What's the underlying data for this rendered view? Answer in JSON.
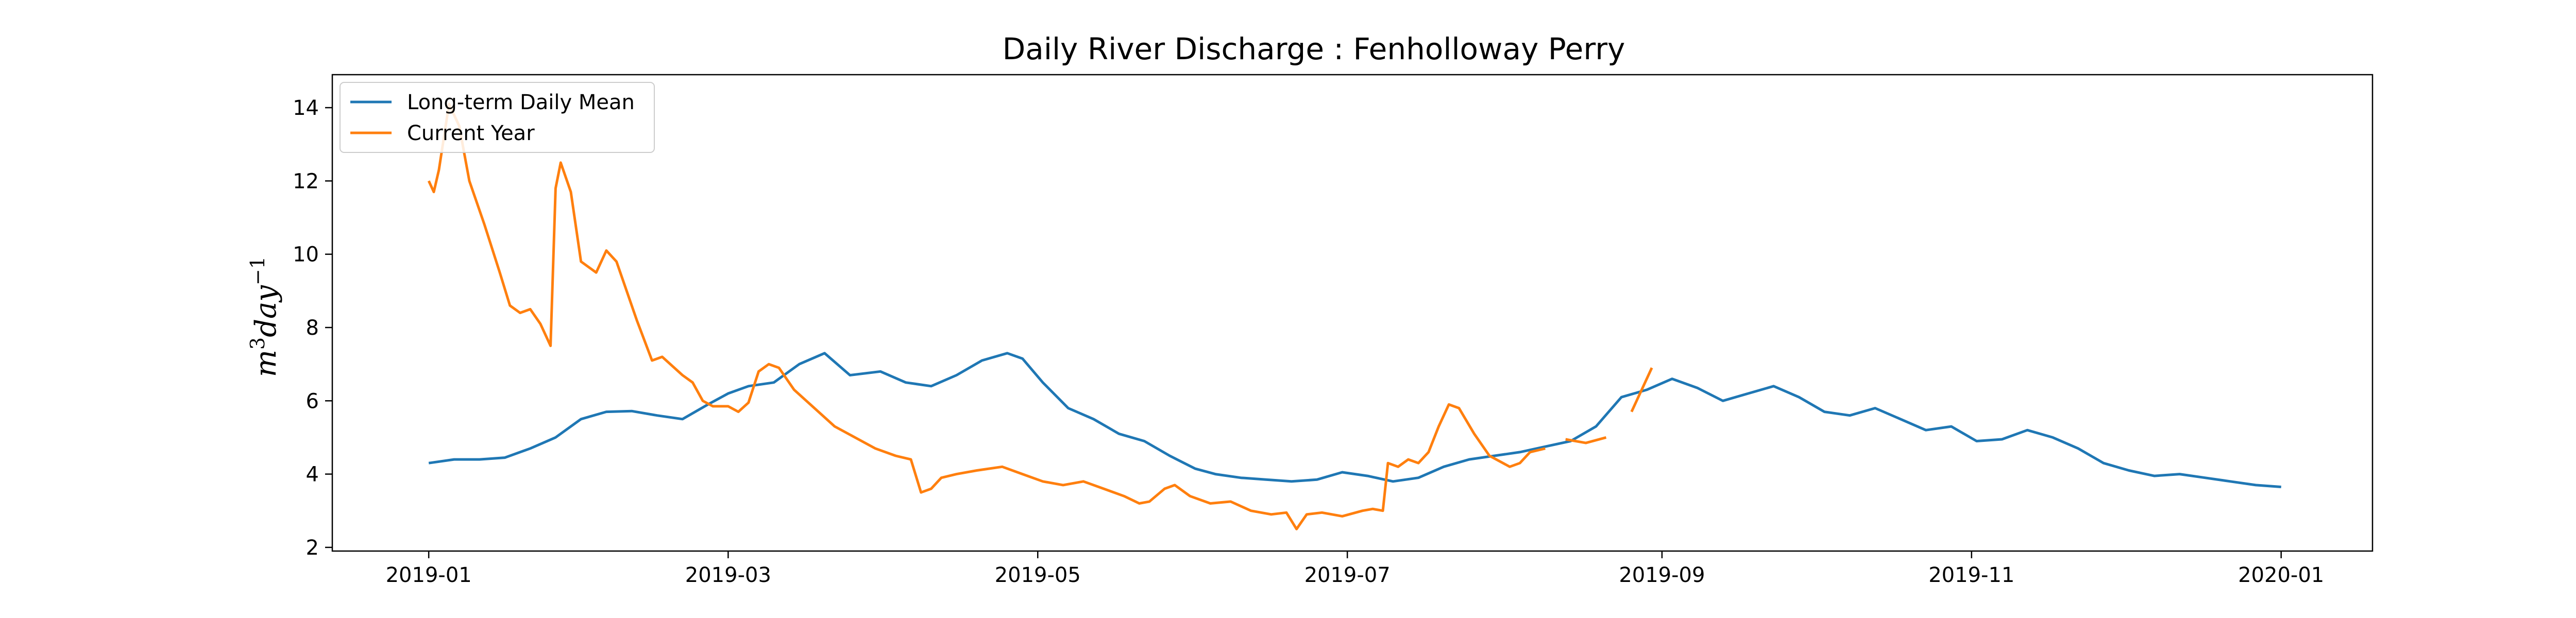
{
  "chart_data": {
    "type": "line",
    "title": "Daily River Discharge : Fenholloway Perry",
    "xlabel": "",
    "ylabel_base": "m",
    "ylabel_sup": "3",
    "ylabel_mid": "day",
    "ylabel_sup2": "−1",
    "ylim": [
      1.9,
      14.9
    ],
    "xlim": [
      "2018-12-13",
      "2020-01-19"
    ],
    "yticks": [
      2,
      4,
      6,
      8,
      10,
      12,
      14
    ],
    "xticks": [
      "2019-01",
      "2019-03",
      "2019-05",
      "2019-07",
      "2019-09",
      "2019-11",
      "2020-01"
    ],
    "xtick_dates": [
      "2019-01-01",
      "2019-03-01",
      "2019-05-01",
      "2019-07-01",
      "2019-09-01",
      "2019-11-01",
      "2020-01-01"
    ],
    "grid": false,
    "legend_position": "top-left",
    "series": [
      {
        "name": "Long-term Daily Mean",
        "color": "#1f77b4",
        "points": [
          [
            "2019-01-01",
            4.3
          ],
          [
            "2019-01-06",
            4.4
          ],
          [
            "2019-01-11",
            4.4
          ],
          [
            "2019-01-16",
            4.45
          ],
          [
            "2019-01-21",
            4.7
          ],
          [
            "2019-01-26",
            5.0
          ],
          [
            "2019-01-31",
            5.5
          ],
          [
            "2019-02-05",
            5.7
          ],
          [
            "2019-02-10",
            5.72
          ],
          [
            "2019-02-15",
            5.6
          ],
          [
            "2019-02-20",
            5.5
          ],
          [
            "2019-02-25",
            5.9
          ],
          [
            "2019-03-01",
            6.2
          ],
          [
            "2019-03-05",
            6.4
          ],
          [
            "2019-03-10",
            6.5
          ],
          [
            "2019-03-15",
            7.0
          ],
          [
            "2019-03-20",
            7.3
          ],
          [
            "2019-03-25",
            6.7
          ],
          [
            "2019-03-31",
            6.8
          ],
          [
            "2019-04-05",
            6.5
          ],
          [
            "2019-04-10",
            6.4
          ],
          [
            "2019-04-15",
            6.7
          ],
          [
            "2019-04-20",
            7.1
          ],
          [
            "2019-04-25",
            7.3
          ],
          [
            "2019-04-28",
            7.15
          ],
          [
            "2019-05-02",
            6.5
          ],
          [
            "2019-05-07",
            5.8
          ],
          [
            "2019-05-12",
            5.5
          ],
          [
            "2019-05-17",
            5.1
          ],
          [
            "2019-05-22",
            4.9
          ],
          [
            "2019-05-27",
            4.5
          ],
          [
            "2019-06-01",
            4.15
          ],
          [
            "2019-06-05",
            4.0
          ],
          [
            "2019-06-10",
            3.9
          ],
          [
            "2019-06-15",
            3.85
          ],
          [
            "2019-06-20",
            3.8
          ],
          [
            "2019-06-25",
            3.85
          ],
          [
            "2019-06-30",
            4.05
          ],
          [
            "2019-07-05",
            3.95
          ],
          [
            "2019-07-10",
            3.8
          ],
          [
            "2019-07-15",
            3.9
          ],
          [
            "2019-07-20",
            4.2
          ],
          [
            "2019-07-25",
            4.4
          ],
          [
            "2019-07-30",
            4.5
          ],
          [
            "2019-08-04",
            4.6
          ],
          [
            "2019-08-09",
            4.75
          ],
          [
            "2019-08-14",
            4.9
          ],
          [
            "2019-08-19",
            5.3
          ],
          [
            "2019-08-24",
            6.1
          ],
          [
            "2019-08-29",
            6.3
          ],
          [
            "2019-09-03",
            6.6
          ],
          [
            "2019-09-08",
            6.35
          ],
          [
            "2019-09-13",
            6.0
          ],
          [
            "2019-09-18",
            6.2
          ],
          [
            "2019-09-23",
            6.4
          ],
          [
            "2019-09-28",
            6.1
          ],
          [
            "2019-10-03",
            5.7
          ],
          [
            "2019-10-08",
            5.6
          ],
          [
            "2019-10-13",
            5.8
          ],
          [
            "2019-10-18",
            5.5
          ],
          [
            "2019-10-23",
            5.2
          ],
          [
            "2019-10-28",
            5.3
          ],
          [
            "2019-11-02",
            4.9
          ],
          [
            "2019-11-07",
            4.95
          ],
          [
            "2019-11-12",
            5.2
          ],
          [
            "2019-11-17",
            5.0
          ],
          [
            "2019-11-22",
            4.7
          ],
          [
            "2019-11-27",
            4.3
          ],
          [
            "2019-12-02",
            4.1
          ],
          [
            "2019-12-07",
            3.95
          ],
          [
            "2019-12-12",
            4.0
          ],
          [
            "2019-12-17",
            3.9
          ],
          [
            "2019-12-22",
            3.8
          ],
          [
            "2019-12-27",
            3.7
          ],
          [
            "2020-01-01",
            3.65
          ]
        ]
      },
      {
        "name": "Current Year",
        "color": "#ff7f0e",
        "points": [
          [
            "2019-01-01",
            12.0
          ],
          [
            "2019-01-02",
            11.7
          ],
          [
            "2019-01-03",
            12.3
          ],
          [
            "2019-01-05",
            14.1
          ],
          [
            "2019-01-07",
            13.5
          ],
          [
            "2019-01-09",
            12.0
          ],
          [
            "2019-01-12",
            10.8
          ],
          [
            "2019-01-15",
            9.5
          ],
          [
            "2019-01-17",
            8.6
          ],
          [
            "2019-01-19",
            8.4
          ],
          [
            "2019-01-21",
            8.5
          ],
          [
            "2019-01-23",
            8.1
          ],
          [
            "2019-01-25",
            7.5
          ],
          [
            "2019-01-26",
            11.8
          ],
          [
            "2019-01-27",
            12.5
          ],
          [
            "2019-01-29",
            11.7
          ],
          [
            "2019-01-31",
            9.8
          ],
          [
            "2019-02-02",
            9.6
          ],
          [
            "2019-02-03",
            9.5
          ],
          [
            "2019-02-05",
            10.1
          ],
          [
            "2019-02-07",
            9.8
          ],
          [
            "2019-02-09",
            9.0
          ],
          [
            "2019-02-11",
            8.2
          ],
          [
            "2019-02-14",
            7.1
          ],
          [
            "2019-02-16",
            7.2
          ],
          [
            "2019-02-20",
            6.7
          ],
          [
            "2019-02-22",
            6.5
          ],
          [
            "2019-02-24",
            6.0
          ],
          [
            "2019-02-26",
            5.85
          ],
          [
            "2019-03-01",
            5.85
          ],
          [
            "2019-03-03",
            5.7
          ],
          [
            "2019-03-05",
            5.95
          ],
          [
            "2019-03-07",
            6.8
          ],
          [
            "2019-03-09",
            7.0
          ],
          [
            "2019-03-11",
            6.9
          ],
          [
            "2019-03-14",
            6.3
          ],
          [
            "2019-03-18",
            5.8
          ],
          [
            "2019-03-22",
            5.3
          ],
          [
            "2019-03-26",
            5.0
          ],
          [
            "2019-03-30",
            4.7
          ],
          [
            "2019-04-03",
            4.5
          ],
          [
            "2019-04-06",
            4.4
          ],
          [
            "2019-04-08",
            3.5
          ],
          [
            "2019-04-10",
            3.6
          ],
          [
            "2019-04-12",
            3.9
          ],
          [
            "2019-04-15",
            4.0
          ],
          [
            "2019-04-19",
            4.1
          ],
          [
            "2019-04-24",
            4.2
          ],
          [
            "2019-04-28",
            4.0
          ],
          [
            "2019-05-02",
            3.8
          ],
          [
            "2019-05-06",
            3.7
          ],
          [
            "2019-05-10",
            3.8
          ],
          [
            "2019-05-14",
            3.6
          ],
          [
            "2019-05-18",
            3.4
          ],
          [
            "2019-05-21",
            3.2
          ],
          [
            "2019-05-23",
            3.25
          ],
          [
            "2019-05-26",
            3.6
          ],
          [
            "2019-05-28",
            3.7
          ],
          [
            "2019-05-31",
            3.4
          ],
          [
            "2019-06-04",
            3.2
          ],
          [
            "2019-06-08",
            3.25
          ],
          [
            "2019-06-12",
            3.0
          ],
          [
            "2019-06-16",
            2.9
          ],
          [
            "2019-06-19",
            2.95
          ],
          [
            "2019-06-21",
            2.5
          ],
          [
            "2019-06-23",
            2.9
          ],
          [
            "2019-06-26",
            2.95
          ],
          [
            "2019-06-30",
            2.85
          ],
          [
            "2019-07-04",
            3.0
          ],
          [
            "2019-07-06",
            3.05
          ],
          [
            "2019-07-08",
            3.0
          ],
          [
            "2019-07-09",
            4.3
          ],
          [
            "2019-07-11",
            4.2
          ],
          [
            "2019-07-13",
            4.4
          ],
          [
            "2019-07-15",
            4.3
          ],
          [
            "2019-07-17",
            4.6
          ],
          [
            "2019-07-19",
            5.3
          ],
          [
            "2019-07-21",
            5.9
          ],
          [
            "2019-07-23",
            5.8
          ],
          [
            "2019-07-26",
            5.1
          ],
          [
            "2019-07-29",
            4.5
          ],
          [
            "2019-08-02",
            4.2
          ],
          [
            "2019-08-04",
            4.3
          ],
          [
            "2019-08-06",
            4.6
          ],
          [
            "2019-08-09",
            4.7
          ],
          null,
          [
            "2019-08-13",
            4.95
          ],
          [
            "2019-08-17",
            4.85
          ],
          [
            "2019-08-21",
            5.0
          ],
          null,
          [
            "2019-08-26",
            5.7
          ],
          [
            "2019-08-30",
            6.9
          ]
        ]
      }
    ]
  }
}
